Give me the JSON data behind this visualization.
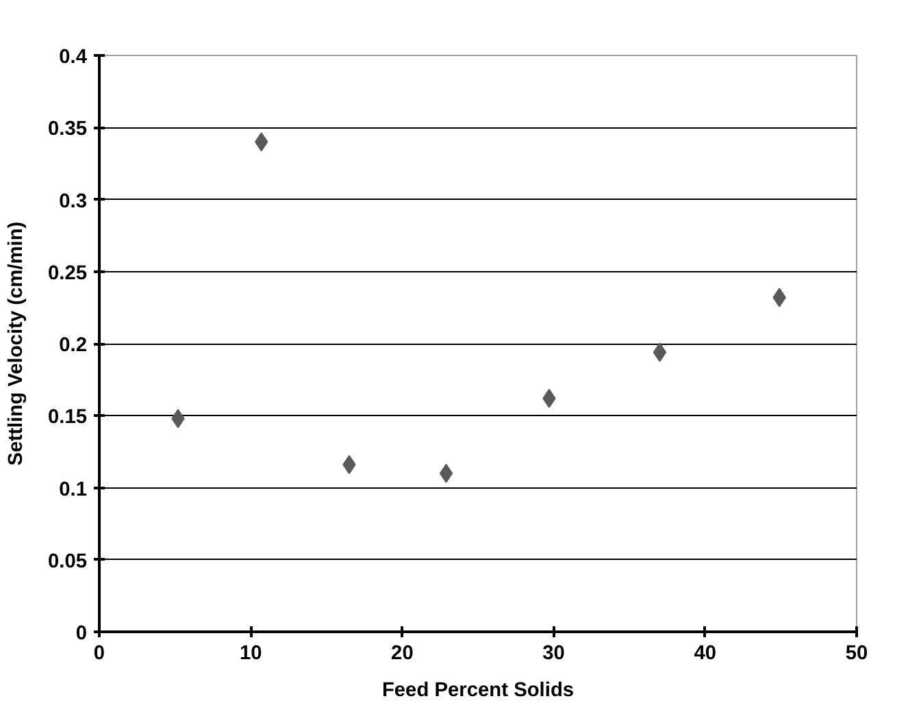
{
  "chart_data": {
    "type": "scatter",
    "xlabel": "Feed Percent Solids",
    "ylabel": "Settling Velocity (cm/min)",
    "x": [
      5.2,
      10.7,
      16.5,
      22.9,
      29.7,
      37.0,
      44.9
    ],
    "values": [
      0.148,
      0.34,
      0.116,
      0.11,
      0.162,
      0.194,
      0.232
    ],
    "color": "#595959",
    "marker": "diamond",
    "xlim": [
      0,
      50
    ],
    "ylim": [
      0,
      0.4
    ],
    "xticks": [
      0,
      10,
      20,
      30,
      40,
      50
    ],
    "yticks": [
      0,
      0.05,
      0.1,
      0.15,
      0.2,
      0.25,
      0.3,
      0.35,
      0.4
    ],
    "grid": "y"
  }
}
